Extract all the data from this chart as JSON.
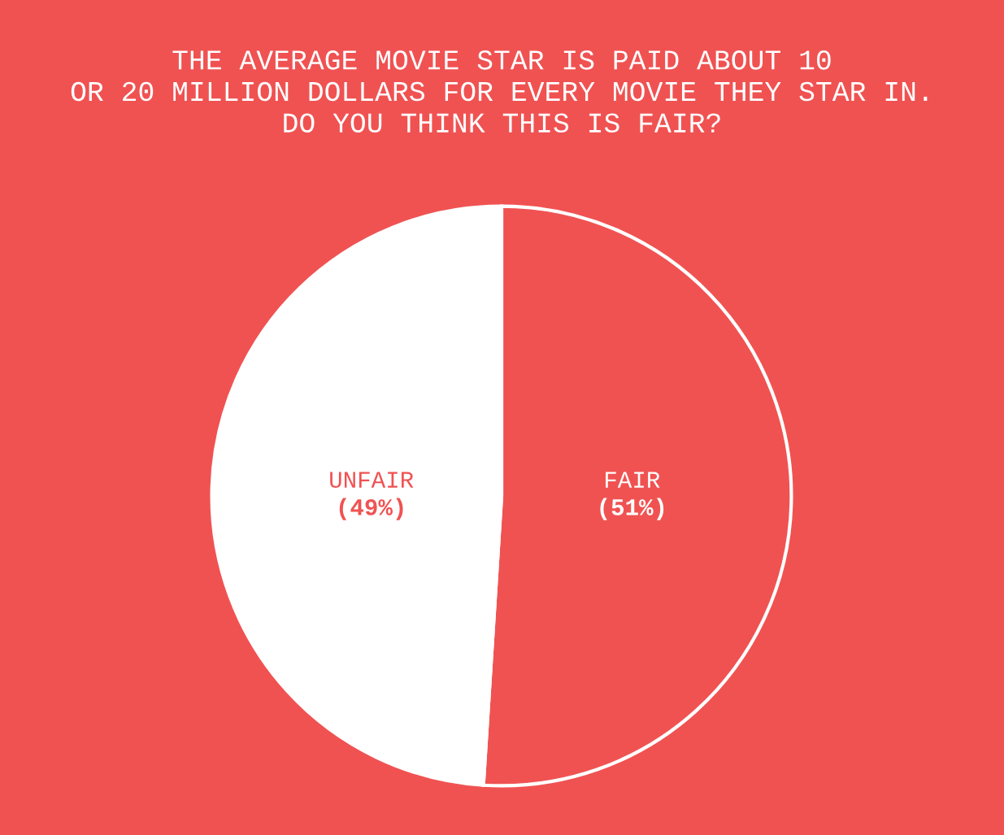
{
  "chart_data": {
    "type": "pie",
    "title": "THE AVERAGE MOVIE STAR IS PAID ABOUT 10\nOR 20 MILLION DOLLARS FOR EVERY MOVIE THEY STAR IN.\nDO YOU THINK THIS IS FAIR?",
    "categories": [
      "FAIR",
      "UNFAIR"
    ],
    "values": [
      51,
      49
    ],
    "colors": [
      "#f05252",
      "#ffffff"
    ],
    "value_labels": [
      "(51%)",
      "(49%)"
    ]
  }
}
